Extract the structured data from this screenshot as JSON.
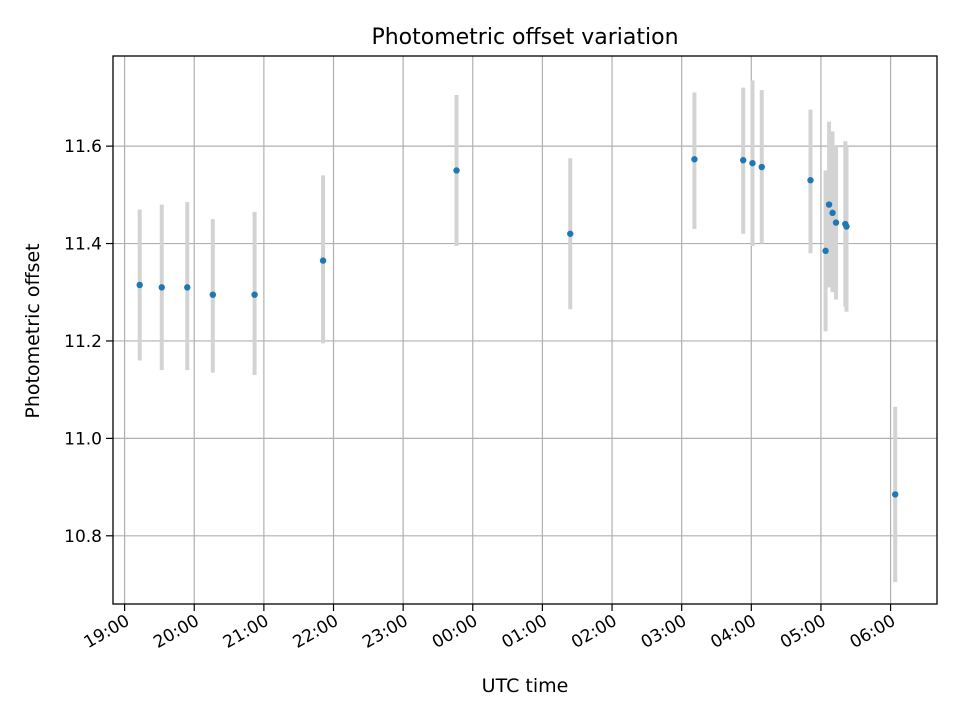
{
  "chart_data": {
    "type": "scatter",
    "title": "Photometric offset variation",
    "xlabel": "UTC time",
    "ylabel": "Photometric offset",
    "x_tick_labels": [
      "19:00",
      "20:00",
      "21:00",
      "22:00",
      "23:00",
      "00:00",
      "01:00",
      "02:00",
      "03:00",
      "04:00",
      "05:00",
      "06:00"
    ],
    "y_tick_labels": [
      "10.8",
      "11.0",
      "11.2",
      "11.4",
      "11.6"
    ],
    "xlim": [
      "18:50",
      "06:40"
    ],
    "ylim": [
      10.66,
      11.785
    ],
    "y_ticks": [
      10.8,
      11.0,
      11.2,
      11.4,
      11.6
    ],
    "grid": true,
    "legend": "none",
    "colors": {
      "points": "#1f77b4",
      "error_bars": "#d3d3d3",
      "grid": "#b0b0b0",
      "frame": "#000000"
    },
    "points": [
      {
        "x": "19:13",
        "y": 11.315,
        "ylow": 11.16,
        "yhigh": 11.47
      },
      {
        "x": "19:32",
        "y": 11.31,
        "ylow": 11.14,
        "yhigh": 11.48
      },
      {
        "x": "19:54",
        "y": 11.31,
        "ylow": 11.14,
        "yhigh": 11.485
      },
      {
        "x": "20:16",
        "y": 11.295,
        "ylow": 11.135,
        "yhigh": 11.45
      },
      {
        "x": "20:52",
        "y": 11.295,
        "ylow": 11.13,
        "yhigh": 11.465
      },
      {
        "x": "21:51",
        "y": 11.365,
        "ylow": 11.195,
        "yhigh": 11.54
      },
      {
        "x": "23:46",
        "y": 11.55,
        "ylow": 11.395,
        "yhigh": 11.705
      },
      {
        "x": "01:24",
        "y": 11.42,
        "ylow": 11.265,
        "yhigh": 11.575
      },
      {
        "x": "03:11",
        "y": 11.573,
        "ylow": 11.43,
        "yhigh": 11.71
      },
      {
        "x": "03:53",
        "y": 11.571,
        "ylow": 11.42,
        "yhigh": 11.72
      },
      {
        "x": "04:01",
        "y": 11.565,
        "ylow": 11.395,
        "yhigh": 11.735
      },
      {
        "x": "04:09",
        "y": 11.557,
        "ylow": 11.4,
        "yhigh": 11.715
      },
      {
        "x": "04:51",
        "y": 11.53,
        "ylow": 11.38,
        "yhigh": 11.675
      },
      {
        "x": "05:04",
        "y": 11.385,
        "ylow": 11.22,
        "yhigh": 11.55
      },
      {
        "x": "05:07",
        "y": 11.48,
        "ylow": 11.31,
        "yhigh": 11.65
      },
      {
        "x": "05:10",
        "y": 11.463,
        "ylow": 11.3,
        "yhigh": 11.63
      },
      {
        "x": "05:13",
        "y": 11.443,
        "ylow": 11.285,
        "yhigh": 11.6
      },
      {
        "x": "05:21",
        "y": 11.44,
        "ylow": 11.27,
        "yhigh": 11.61
      },
      {
        "x": "05:22",
        "y": 11.435,
        "ylow": 11.26,
        "yhigh": 11.6
      },
      {
        "x": "06:04",
        "y": 10.885,
        "ylow": 10.705,
        "yhigh": 11.065
      }
    ]
  }
}
